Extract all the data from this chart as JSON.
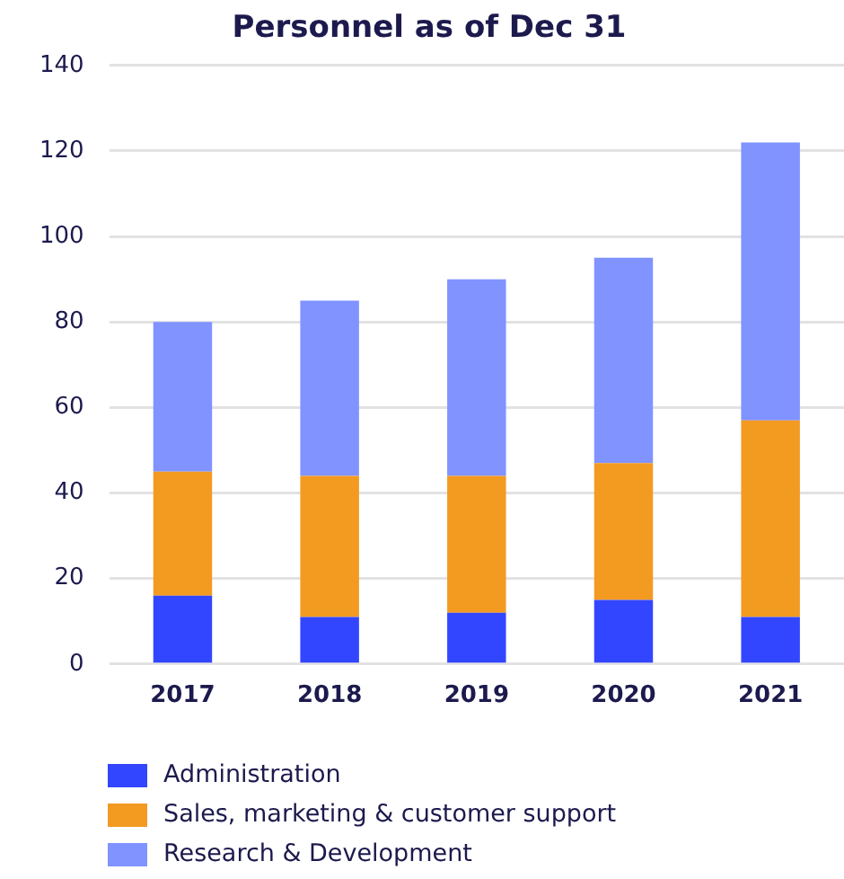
{
  "chart_data": {
    "type": "bar",
    "title": "Personnel as of Dec 31",
    "categories": [
      "2017",
      "2018",
      "2019",
      "2020",
      "2021"
    ],
    "stacked": true,
    "series": [
      {
        "name": "Administration",
        "color": "#3346ff",
        "values": [
          16,
          11,
          12,
          15,
          11
        ]
      },
      {
        "name": "Sales, marketing & customer support",
        "color": "#f39a21",
        "values": [
          29,
          33,
          32,
          32,
          46
        ]
      },
      {
        "name": "Research & Development",
        "color": "#8093ff",
        "values": [
          35,
          41,
          46,
          48,
          65
        ]
      }
    ],
    "ylim": [
      0,
      140
    ],
    "yticks": [
      0,
      20,
      40,
      60,
      80,
      100,
      120,
      140
    ],
    "grid": "y",
    "legend": "bottom left"
  }
}
